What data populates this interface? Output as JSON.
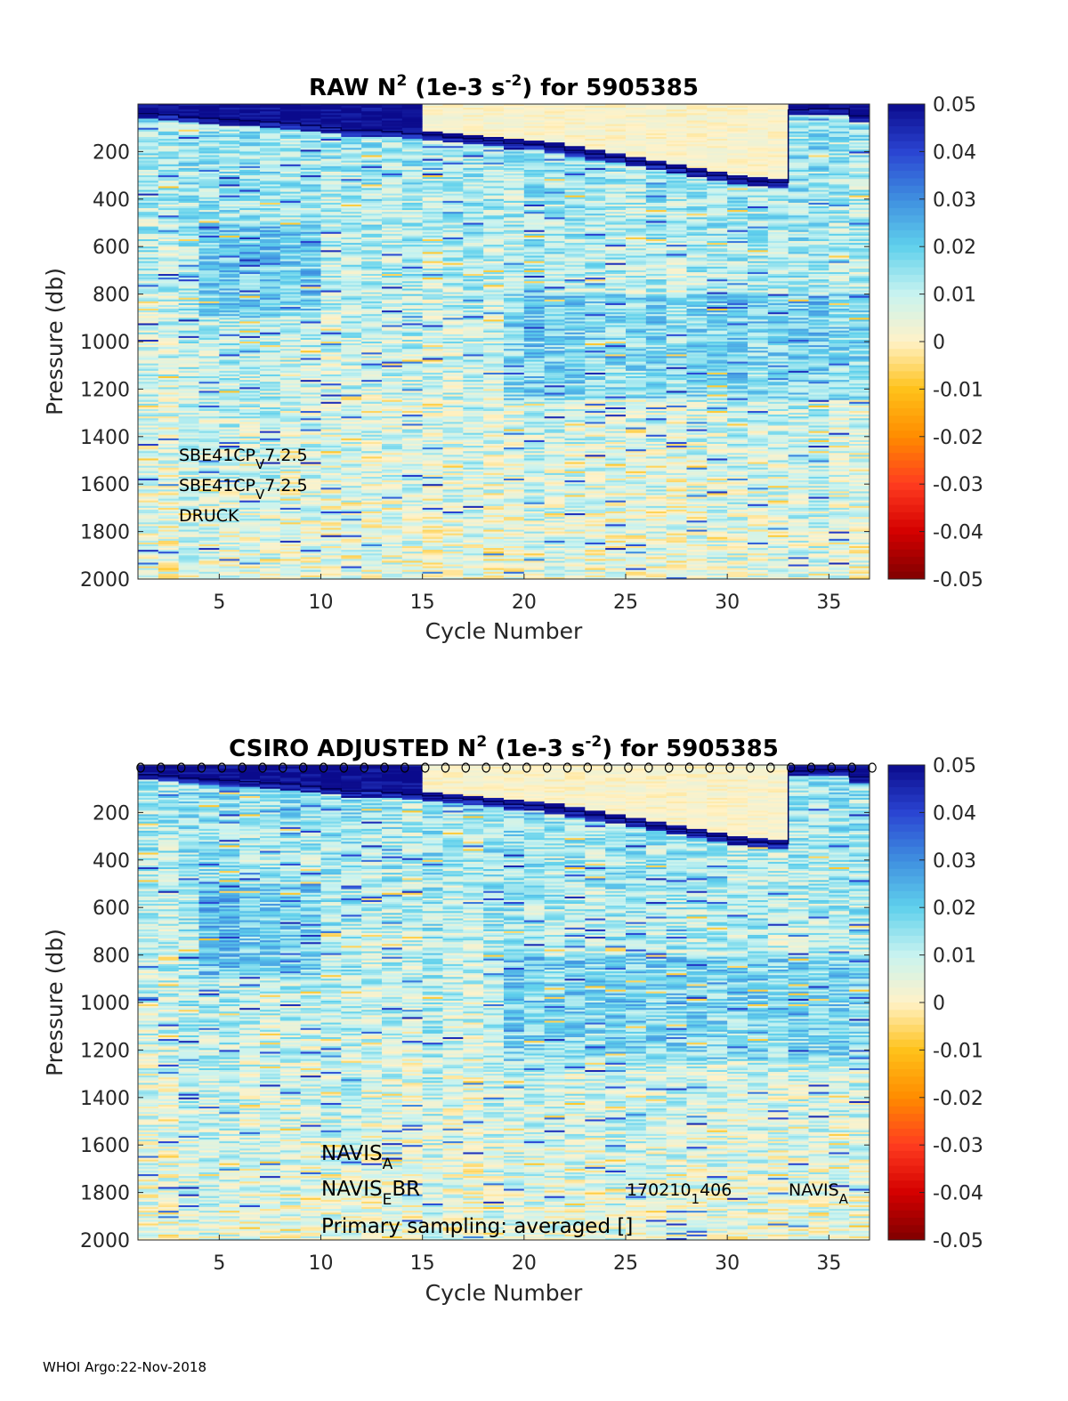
{
  "footer": "WHOI Argo:22-Nov-2018",
  "colorbar": {
    "ticks": [
      "0.05",
      "0.04",
      "0.03",
      "0.02",
      "0.01",
      "0",
      "-0.01",
      "-0.02",
      "-0.03",
      "-0.04",
      "-0.05"
    ],
    "range": [
      -0.05,
      0.05
    ],
    "colormap": [
      "#7f0000",
      "#d40000",
      "#ff3c1f",
      "#ff8c00",
      "#ffc21a",
      "#fff2c8",
      "#c8f3f0",
      "#5fd0ec",
      "#3f8fe0",
      "#2a44d2",
      "#0a0a8c"
    ]
  },
  "chart_data": [
    {
      "type": "heatmap",
      "title": "RAW N",
      "title_sup": "2",
      "title_mid": " (1e-3 s",
      "title_sup2": "-2",
      "title_end": ") for 5905385",
      "xlabel": "Cycle Number",
      "ylabel": "Pressure (db)",
      "xticks": [
        "5",
        "10",
        "15",
        "20",
        "25",
        "30",
        "35"
      ],
      "yticks": [
        "200",
        "400",
        "600",
        "800",
        "1000",
        "1200",
        "1400",
        "1600",
        "1800",
        "2000"
      ],
      "xlim": [
        1,
        37
      ],
      "ylim": [
        2000,
        0
      ],
      "annotations": [
        {
          "main": "SBE41CP",
          "sub": "V",
          "rest": "7.2.5"
        },
        {
          "main": "SBE41CP",
          "sub": "V",
          "rest": "7.2.5"
        },
        {
          "main": "DRUCK",
          "sub": "",
          "rest": ""
        }
      ],
      "mixed_layer_depth_by_cycle": [
        40,
        45,
        55,
        60,
        65,
        70,
        75,
        80,
        90,
        100,
        110,
        110,
        115,
        125,
        130,
        140,
        145,
        155,
        165,
        170,
        180,
        195,
        210,
        225,
        240,
        255,
        270,
        285,
        300,
        315,
        325,
        330,
        25,
        20,
        20,
        50
      ]
    },
    {
      "type": "heatmap",
      "title": "CSIRO  ADJUSTED N",
      "title_sup": "2",
      "title_mid": " (1e-3 s",
      "title_sup2": "-2",
      "title_end": ") for 5905385",
      "xlabel": "Cycle Number",
      "ylabel": "Pressure (db)",
      "xticks": [
        "5",
        "10",
        "15",
        "20",
        "25",
        "30",
        "35"
      ],
      "yticks": [
        "200",
        "400",
        "600",
        "800",
        "1000",
        "1200",
        "1400",
        "1600",
        "1800",
        "2000"
      ],
      "xlim": [
        1,
        37
      ],
      "ylim": [
        2000,
        0
      ],
      "markers": "o",
      "annotations": [
        {
          "main": "NAVIS",
          "sub": "A",
          "rest": ""
        },
        {
          "main": "NAVIS",
          "sub": "E",
          "rest": "BR"
        },
        {
          "main": "Primary sampling: averaged []",
          "sub": "",
          "rest": ""
        }
      ],
      "annotation_right": [
        {
          "main": "170210",
          "sub": "1",
          "rest": "406"
        },
        {
          "main": "NAVIS",
          "sub": "A",
          "rest": ""
        }
      ],
      "mixed_layer_depth_by_cycle": [
        40,
        45,
        55,
        60,
        65,
        70,
        75,
        80,
        90,
        100,
        110,
        110,
        115,
        125,
        130,
        140,
        145,
        155,
        165,
        170,
        180,
        195,
        210,
        225,
        240,
        255,
        270,
        285,
        300,
        315,
        325,
        330,
        25,
        20,
        20,
        50
      ]
    }
  ]
}
